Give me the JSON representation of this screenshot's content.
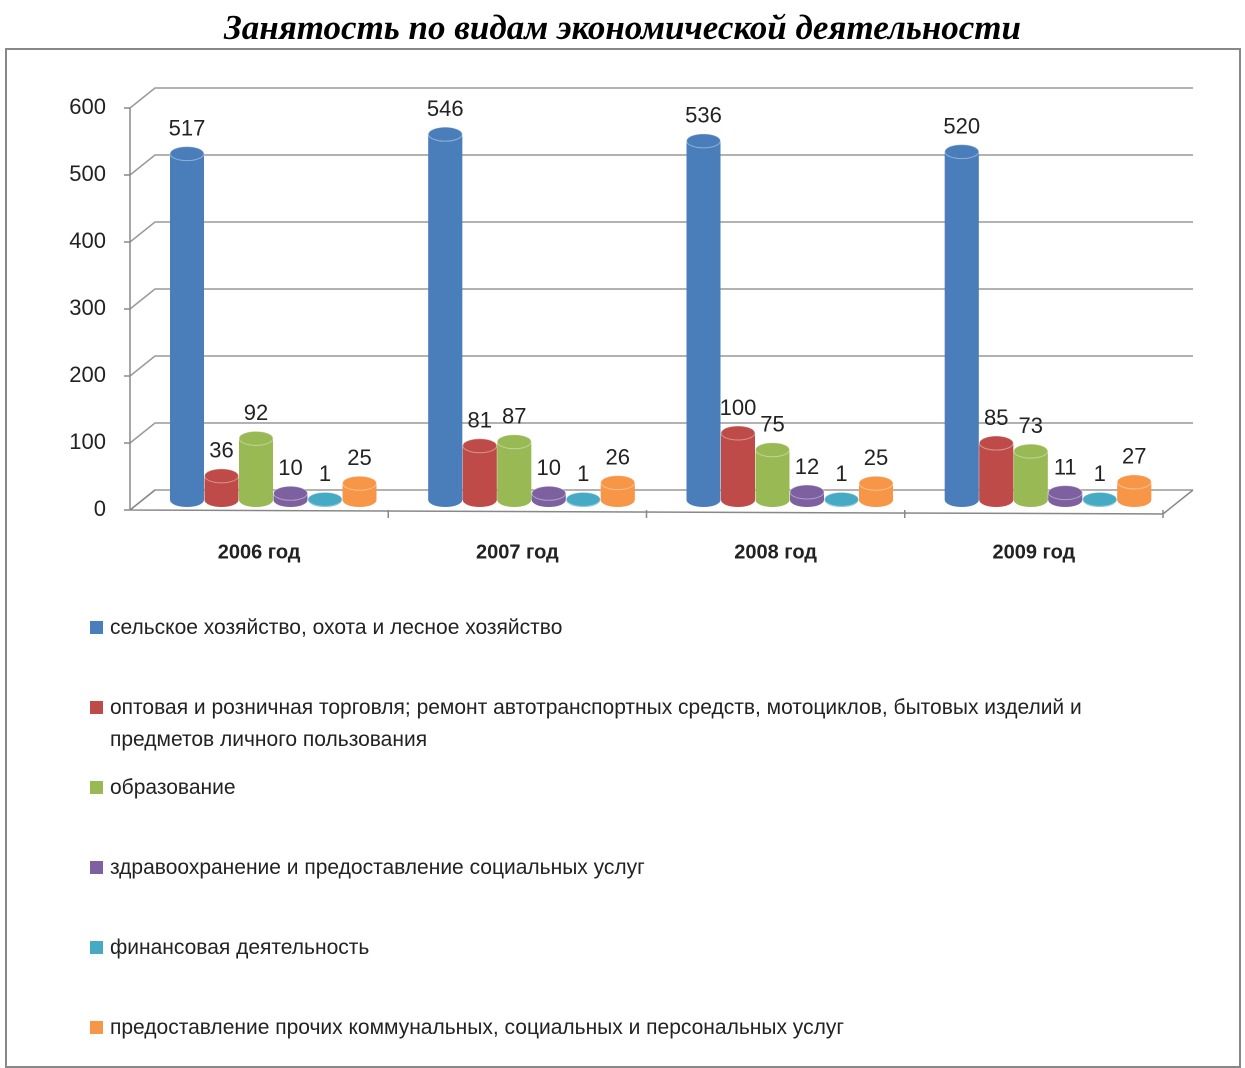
{
  "chart_data": {
    "type": "bar3d",
    "title": "Занятость по видам экономической деятельности",
    "categories": [
      "2006 год",
      "2007 год",
      "2008 год",
      "2009 год"
    ],
    "series": [
      {
        "name": "сельское хозяйство, охота и лесное хозяйство",
        "color": "#4a7ebb",
        "values": [
          517,
          546,
          536,
          520
        ]
      },
      {
        "name": "оптовая и розничная торговля; ремонт автотранспортных средств, мотоциклов, бытовых изделий и предметов личного пользования",
        "color": "#be4b48",
        "values": [
          36,
          81,
          100,
          85
        ]
      },
      {
        "name": "образование",
        "color": "#98b954",
        "values": [
          92,
          87,
          75,
          73
        ]
      },
      {
        "name": "здравоохранение и предоставление социальных услуг",
        "color": "#7d60a0",
        "values": [
          10,
          10,
          12,
          11
        ]
      },
      {
        "name": "финансовая деятельность",
        "color": "#46aac5",
        "values": [
          1,
          1,
          1,
          1
        ]
      },
      {
        "name": "предоставление прочих коммунальных, социальных и персональных услуг",
        "color": "#f79646",
        "values": [
          25,
          26,
          25,
          27
        ]
      }
    ],
    "ylim": [
      0,
      600
    ],
    "yticks": [
      0,
      100,
      200,
      300,
      400,
      500,
      600
    ],
    "grid": true
  }
}
